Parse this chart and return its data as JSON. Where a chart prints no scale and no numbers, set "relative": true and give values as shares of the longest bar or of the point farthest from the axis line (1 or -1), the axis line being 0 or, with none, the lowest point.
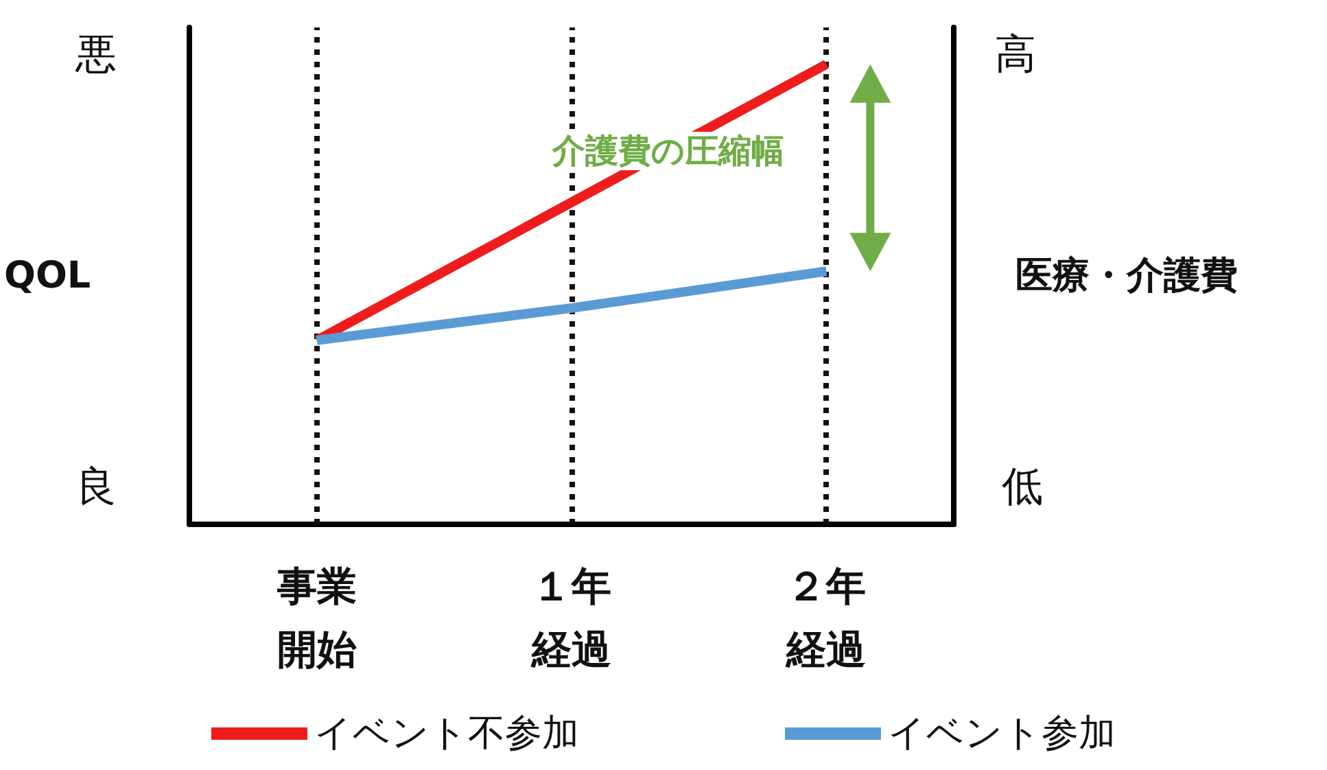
{
  "chart_data": {
    "type": "line",
    "relative": true,
    "ylabel": "QOL",
    "y2label": "医療・介護費",
    "categories": [
      "事業開始",
      "１年経過",
      "２年経過"
    ],
    "series": [
      {
        "name": "イベント不参加",
        "color": "#ee1c1c",
        "values": [
          0.4,
          0.7,
          1
        ]
      },
      {
        "name": "イベント参加",
        "color": "#5b9bd5",
        "values": [
          0.4,
          0.47,
          0.55
        ]
      }
    ],
    "annotations": [
      "介護費の圧縮幅",
      "悪",
      "良",
      "高",
      "低"
    ],
    "grid": "x",
    "legend": "bottom",
    "marker": "none",
    "line_style": "solid"
  }
}
